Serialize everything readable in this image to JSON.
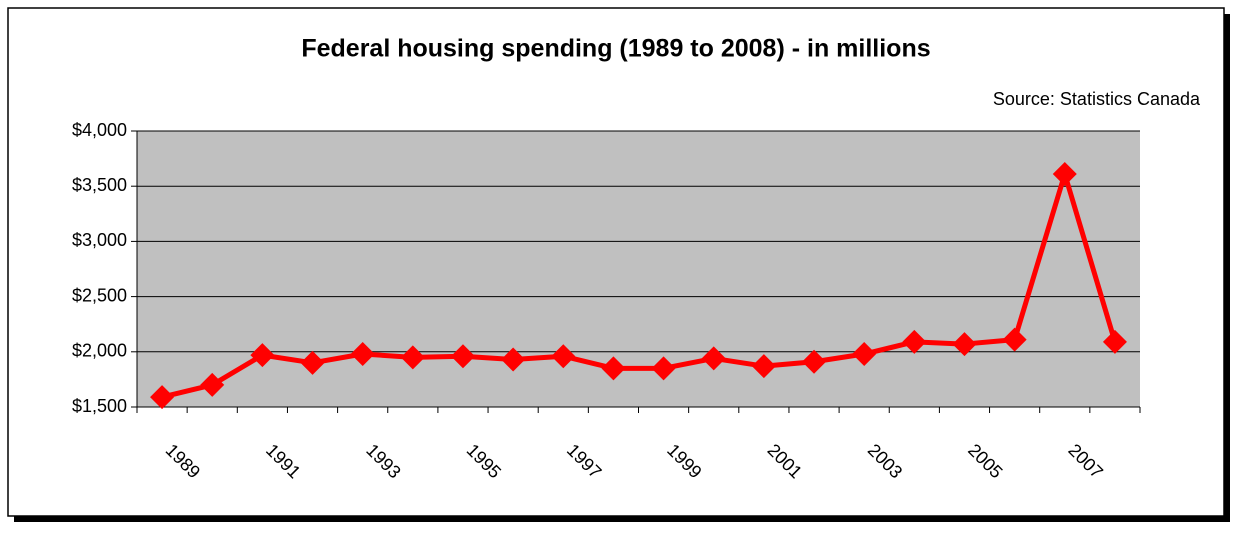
{
  "chart_data": {
    "type": "line",
    "title": "Federal housing spending (1989 to 2008) - in millions",
    "subtitle": "Source: Statistics Canada",
    "categories": [
      "1989",
      null,
      "1991",
      null,
      "1993",
      null,
      "1995",
      null,
      "1997",
      null,
      "1999",
      null,
      "2001",
      null,
      "2003",
      null,
      "2005",
      null,
      "2007",
      null
    ],
    "values": [
      1590,
      1700,
      1970,
      1900,
      1980,
      1950,
      1960,
      1930,
      1960,
      1850,
      1850,
      1940,
      1870,
      1910,
      1980,
      2090,
      2070,
      2110,
      3610,
      2090
    ],
    "color": "#ff0000",
    "ylim": [
      1500,
      4000
    ],
    "yticks": [
      {
        "value": 1500,
        "label": "$1,500"
      },
      {
        "value": 2000,
        "label": "$2,000"
      },
      {
        "value": 2500,
        "label": "$2,500"
      },
      {
        "value": 3000,
        "label": "$3,000"
      },
      {
        "value": 3500,
        "label": "$3,500"
      },
      {
        "value": 4000,
        "label": "$4,000"
      }
    ],
    "grid": true
  }
}
